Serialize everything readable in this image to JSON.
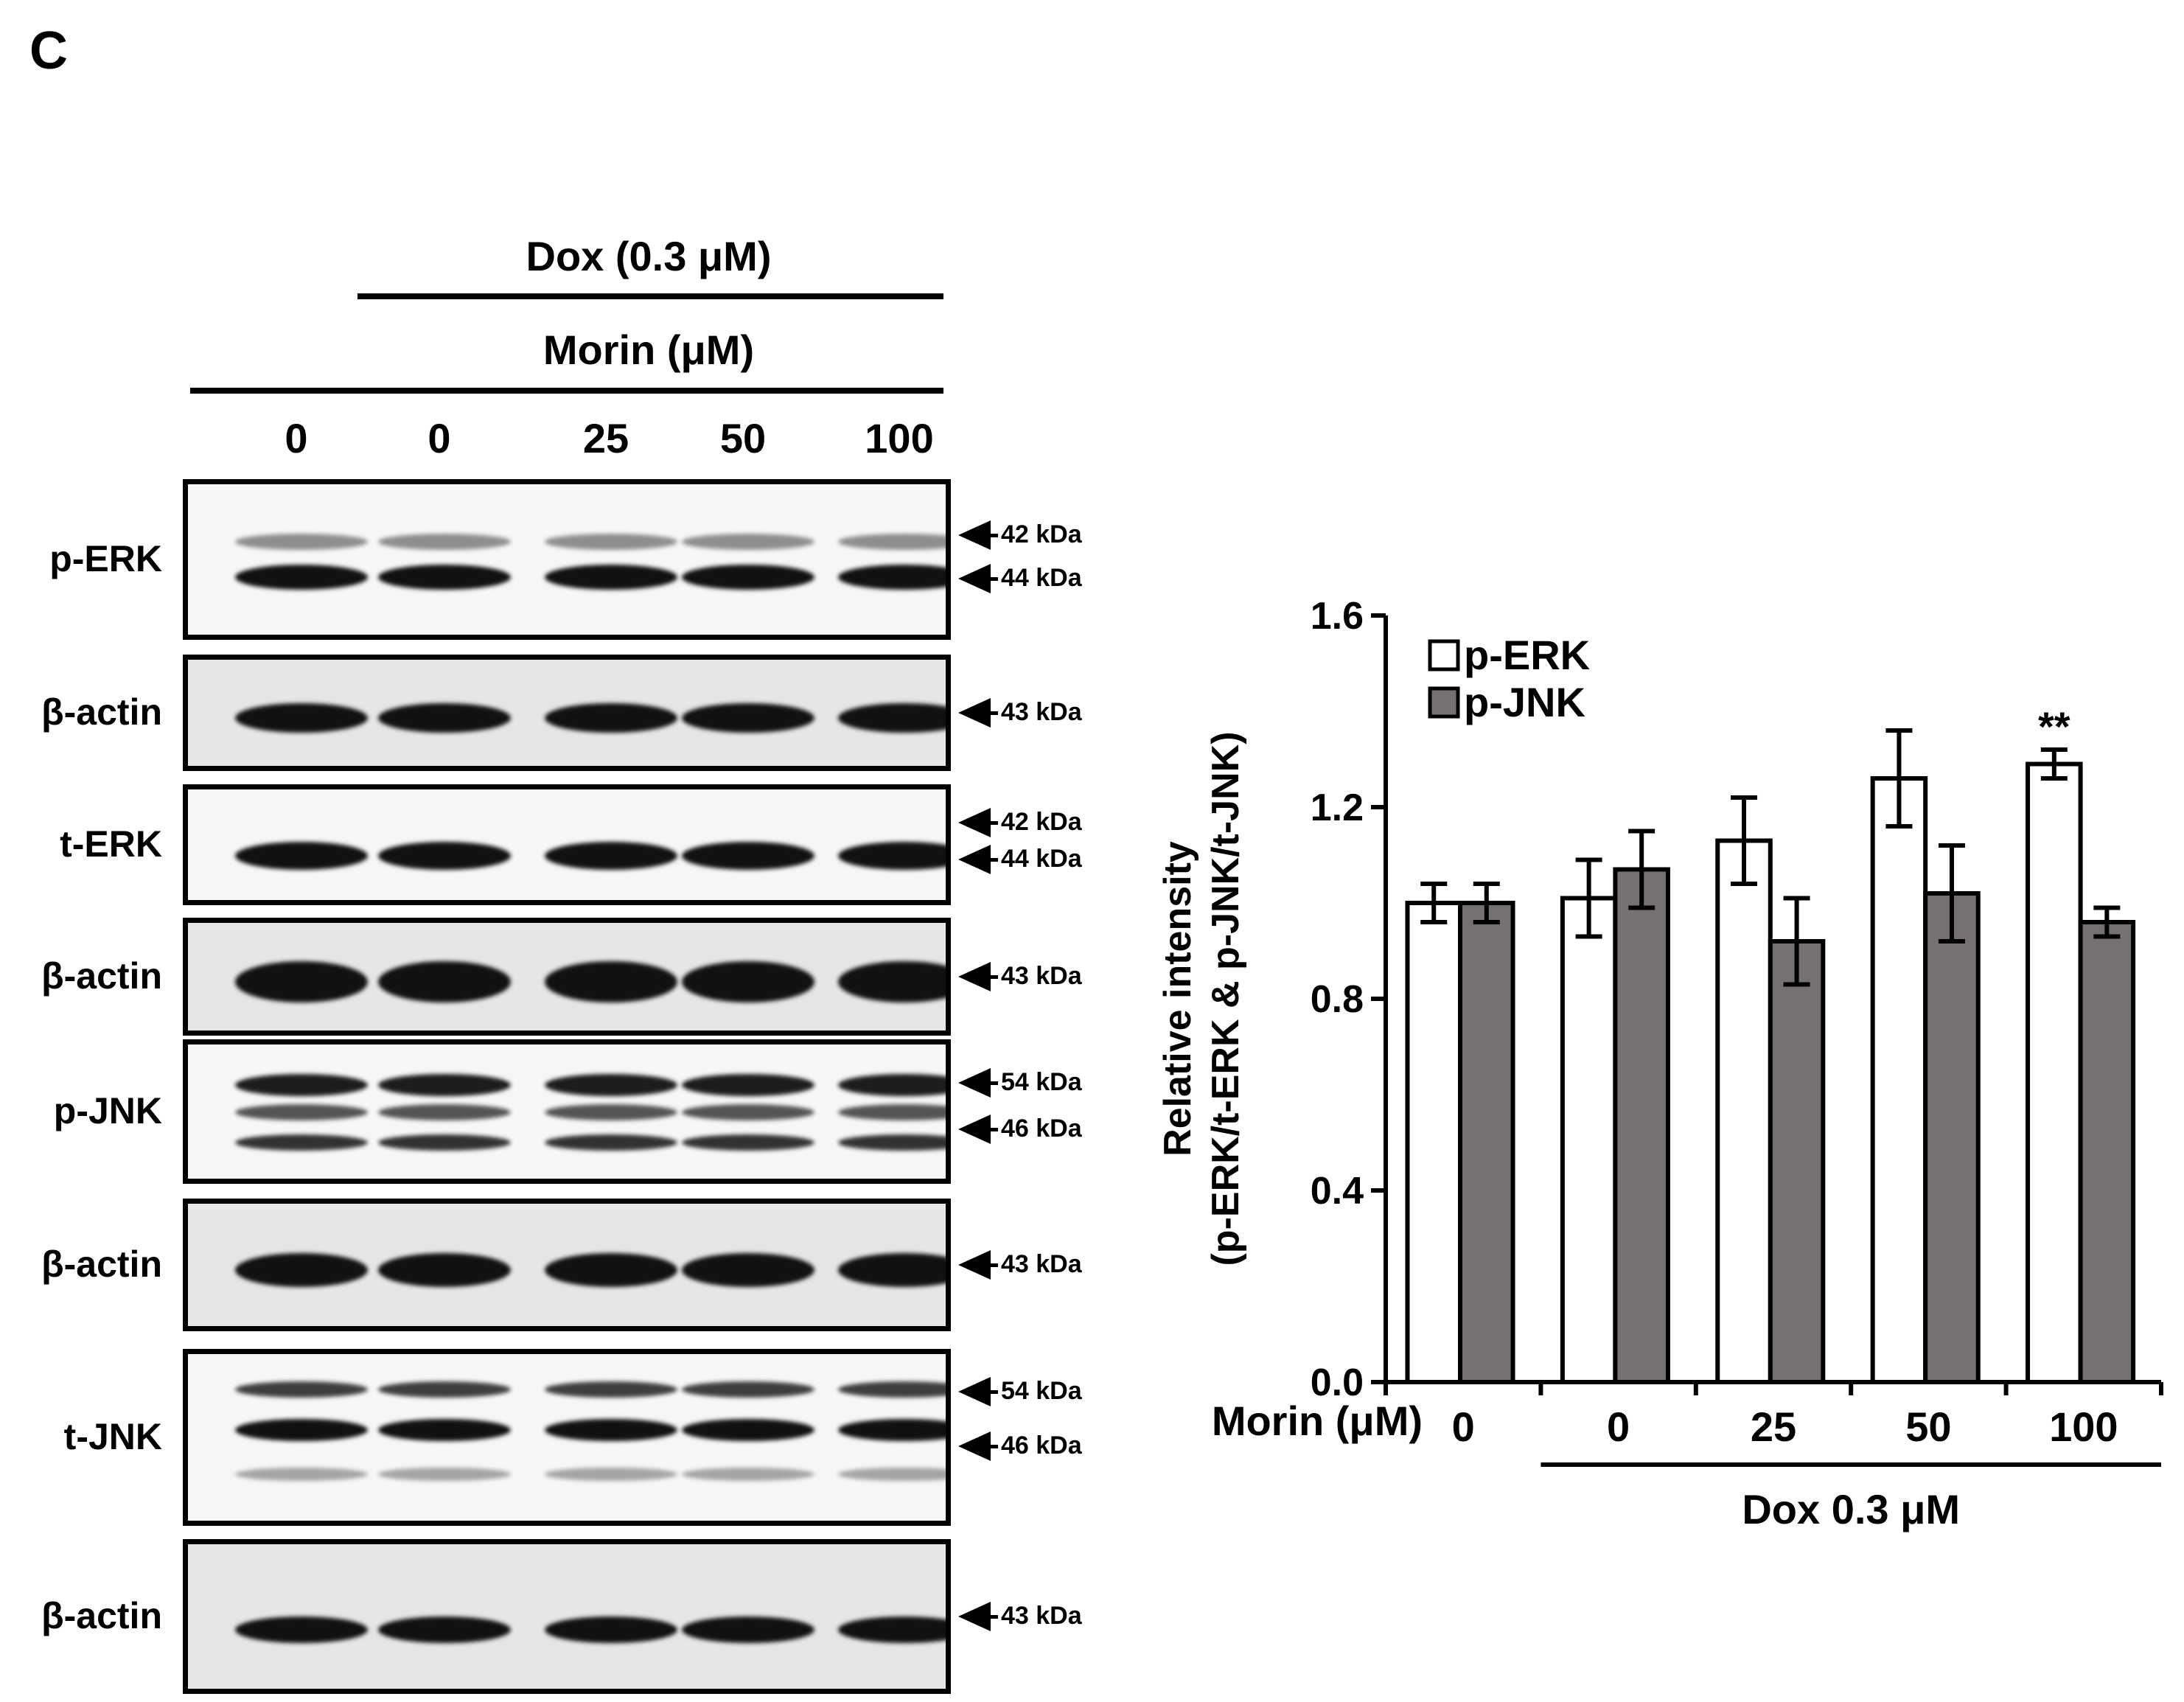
{
  "panel_label": "C",
  "western_blot": {
    "dox_header": "Dox (0.3 μM)",
    "morin_header": "Morin (μM)",
    "lanes": [
      "0",
      "0",
      "25",
      "50",
      "100"
    ],
    "rows": [
      {
        "label": "p-ERK",
        "markers": [
          "42 kDa",
          "44 kDa"
        ]
      },
      {
        "label": "β-actin",
        "markers": [
          "43 kDa"
        ]
      },
      {
        "label": "t-ERK",
        "markers": [
          "42 kDa",
          "44 kDa"
        ]
      },
      {
        "label": "β-actin",
        "markers": [
          "43 kDa"
        ]
      },
      {
        "label": "p-JNK",
        "markers": [
          "54 kDa",
          "46 kDa"
        ]
      },
      {
        "label": "β-actin",
        "markers": [
          "43 kDa"
        ]
      },
      {
        "label": "t-JNK",
        "markers": [
          "54 kDa",
          "46 kDa"
        ]
      },
      {
        "label": "β-actin",
        "markers": [
          "43 kDa"
        ]
      }
    ]
  },
  "chart_data": {
    "type": "bar",
    "ylabel_line1": "Relative intensity",
    "ylabel_line2": "(p-ERK/t-ERK & p-JNK/t-JNK)",
    "xlabel_prefix": "Morin (μM)",
    "categories": [
      "0",
      "0",
      "25",
      "50",
      "100"
    ],
    "group_label": "Dox 0.3 μM",
    "ylim": [
      0,
      1.6
    ],
    "yticks": [
      "0.0",
      "0.4",
      "0.8",
      "1.2",
      "1.6"
    ],
    "series": [
      {
        "name": "p-ERK",
        "color": "#ffffff",
        "values": [
          1.0,
          1.01,
          1.13,
          1.26,
          1.29
        ],
        "errors": [
          0.04,
          0.08,
          0.09,
          0.1,
          0.03
        ]
      },
      {
        "name": "p-JNK",
        "color": "#767171",
        "values": [
          1.0,
          1.07,
          0.92,
          1.02,
          0.96
        ],
        "errors": [
          0.04,
          0.08,
          0.09,
          0.1,
          0.03
        ]
      }
    ],
    "annotations": [
      {
        "category_index": 4,
        "series": "p-ERK",
        "text": "**"
      }
    ],
    "legend_position": "top-left"
  }
}
